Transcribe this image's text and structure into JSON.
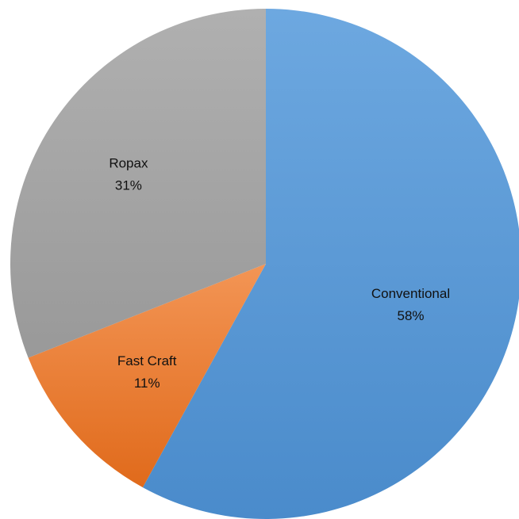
{
  "chart_data": {
    "type": "pie",
    "title": "",
    "slices": [
      {
        "name": "Conventional",
        "value": 58,
        "label": "58%",
        "color": "#5B9BD5"
      },
      {
        "name": "Fast Craft",
        "value": 11,
        "label": "11%",
        "color": "#ED7D31"
      },
      {
        "name": "Ropax",
        "value": 31,
        "label": "31%",
        "color": "#A5A5A5"
      }
    ],
    "start_angle": "12 o'clock",
    "direction": "clockwise",
    "legend": "none",
    "data_labels": "category name and percentage inside slices"
  }
}
